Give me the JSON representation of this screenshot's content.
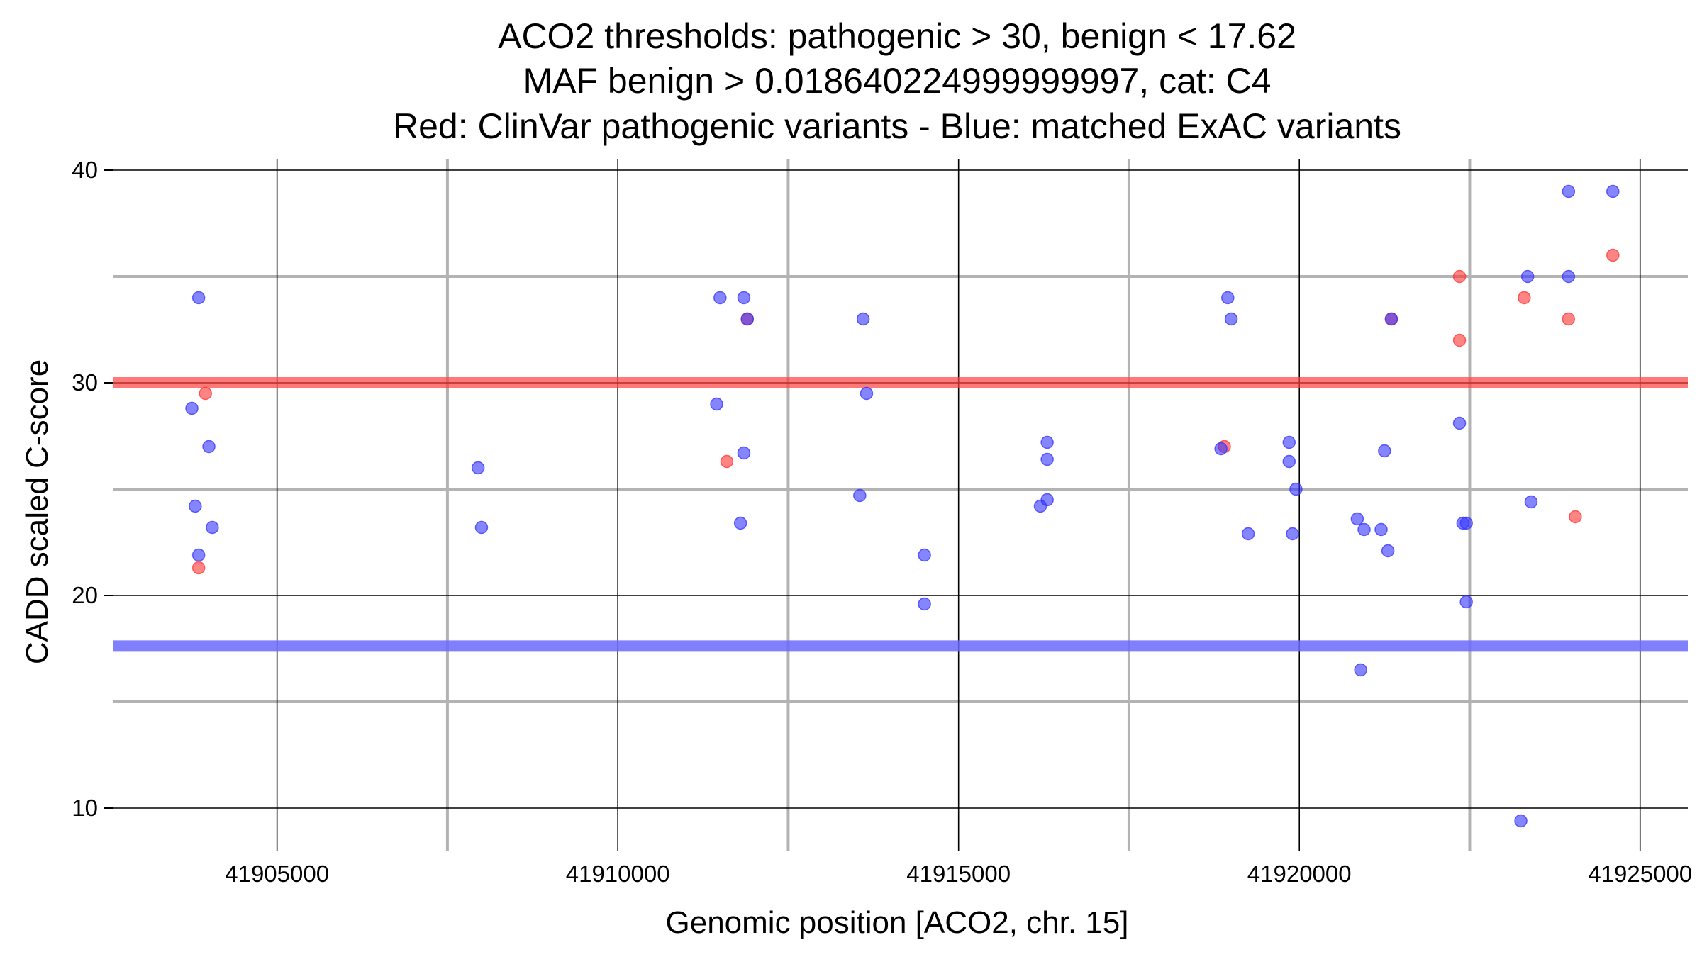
{
  "chart_data": {
    "type": "scatter",
    "title_lines": [
      "ACO2 thresholds: pathogenic > 30, benign < 17.62",
      "MAF benign > 0.018640224999999997, cat: C4",
      "Red: ClinVar pathogenic variants - Blue: matched ExAC variants"
    ],
    "xlabel": "Genomic position [ACO2, chr. 15]",
    "ylabel": "CADD scaled C-score",
    "xlim": [
      41902600,
      41925700
    ],
    "ylim": [
      8,
      40.5
    ],
    "x_ticks": [
      41905000,
      41910000,
      41915000,
      41920000,
      41925000
    ],
    "x_tick_labels": [
      "41905000",
      "41910000",
      "41915000",
      "41920000",
      "41925000"
    ],
    "x_minor_ticks": [
      41907500,
      41912500,
      41917500,
      41922500
    ],
    "y_ticks": [
      10,
      20,
      30,
      40
    ],
    "y_tick_labels": [
      "10",
      "20",
      "30",
      "40"
    ],
    "y_minor_ticks": [
      15,
      25,
      35
    ],
    "grid": true,
    "thresholds": {
      "pathogenic": 30,
      "benign": 17.62,
      "pathogenic_color": "#ff4040",
      "benign_color": "#6a6aff"
    },
    "series": [
      {
        "color": "#ff3333",
        "points": [
          [
            41903850,
            21.3
          ],
          [
            41903950,
            29.5
          ],
          [
            41911600,
            26.3
          ],
          [
            41911900,
            33
          ],
          [
            41918900,
            27
          ],
          [
            41921350,
            33
          ],
          [
            41922350,
            35
          ],
          [
            41922350,
            32
          ],
          [
            41923300,
            34
          ],
          [
            41923950,
            33
          ],
          [
            41924050,
            23.7
          ],
          [
            41924600,
            36
          ]
        ]
      },
      {
        "color": "#3333ff",
        "points": [
          [
            41903750,
            28.8
          ],
          [
            41903800,
            24.2
          ],
          [
            41903850,
            21.9
          ],
          [
            41903850,
            34
          ],
          [
            41904000,
            27
          ],
          [
            41904050,
            23.2
          ],
          [
            41907950,
            26
          ],
          [
            41908000,
            23.2
          ],
          [
            41911450,
            29
          ],
          [
            41911500,
            34
          ],
          [
            41911800,
            23.4
          ],
          [
            41911850,
            26.7
          ],
          [
            41911850,
            34
          ],
          [
            41911900,
            33
          ],
          [
            41913550,
            24.7
          ],
          [
            41913600,
            33
          ],
          [
            41913650,
            29.5
          ],
          [
            41914500,
            21.9
          ],
          [
            41914500,
            19.6
          ],
          [
            41916200,
            24.2
          ],
          [
            41916300,
            24.5
          ],
          [
            41916300,
            27.2
          ],
          [
            41916300,
            26.4
          ],
          [
            41918850,
            26.9
          ],
          [
            41918950,
            34
          ],
          [
            41919000,
            33
          ],
          [
            41919250,
            22.9
          ],
          [
            41919850,
            27.2
          ],
          [
            41919850,
            26.3
          ],
          [
            41919900,
            22.9
          ],
          [
            41919950,
            25
          ],
          [
            41920850,
            23.6
          ],
          [
            41920900,
            16.5
          ],
          [
            41920950,
            23.1
          ],
          [
            41921200,
            23.1
          ],
          [
            41921250,
            26.8
          ],
          [
            41921300,
            22.1
          ],
          [
            41921350,
            33
          ],
          [
            41922350,
            28.1
          ],
          [
            41922400,
            23.4
          ],
          [
            41922450,
            23.4
          ],
          [
            41922450,
            19.7
          ],
          [
            41923250,
            9.4
          ],
          [
            41923350,
            35
          ],
          [
            41923400,
            24.4
          ],
          [
            41923950,
            35
          ],
          [
            41923950,
            39
          ],
          [
            41924600,
            39
          ]
        ]
      }
    ]
  }
}
